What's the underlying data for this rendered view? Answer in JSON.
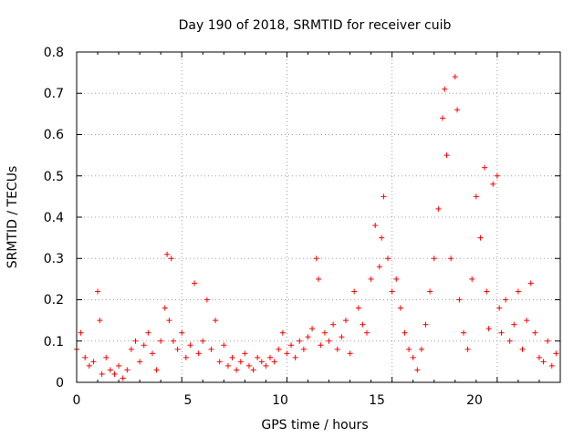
{
  "chart_data": {
    "type": "scatter",
    "title": "Day 190 of 2018, SRMTID for receiver cuib",
    "xlabel": "GPS time / hours",
    "ylabel": "SRMTID / TECUs",
    "xlim": [
      0,
      23
    ],
    "ylim": [
      0,
      0.8
    ],
    "xticks": [
      "0",
      "5",
      "10",
      "15",
      "20"
    ],
    "yticks": [
      "0",
      "0.1",
      "0.2",
      "0.3",
      "0.4",
      "0.5",
      "0.6",
      "0.7",
      "0.8"
    ],
    "grid": true,
    "marker": "+",
    "color": "#ff0000",
    "series": [
      {
        "name": "SRMTID",
        "x": [
          0.0,
          0.2,
          0.4,
          0.6,
          0.8,
          1.0,
          1.1,
          1.2,
          1.4,
          1.6,
          1.8,
          2.0,
          2.2,
          2.4,
          2.6,
          2.8,
          3.0,
          3.2,
          3.4,
          3.6,
          3.8,
          4.0,
          4.2,
          4.3,
          4.4,
          4.5,
          4.6,
          4.8,
          5.0,
          5.2,
          5.4,
          5.6,
          5.8,
          6.0,
          6.2,
          6.4,
          6.6,
          6.8,
          7.0,
          7.2,
          7.4,
          7.6,
          7.8,
          8.0,
          8.2,
          8.4,
          8.6,
          8.8,
          9.0,
          9.2,
          9.4,
          9.6,
          9.8,
          10.0,
          10.2,
          10.4,
          10.6,
          10.8,
          11.0,
          11.2,
          11.4,
          11.5,
          11.6,
          11.8,
          12.0,
          12.2,
          12.4,
          12.6,
          12.8,
          13.0,
          13.2,
          13.4,
          13.6,
          13.8,
          14.0,
          14.2,
          14.4,
          14.5,
          14.6,
          14.8,
          15.0,
          15.2,
          15.4,
          15.6,
          15.8,
          16.0,
          16.2,
          16.4,
          16.6,
          16.8,
          17.0,
          17.2,
          17.4,
          17.5,
          17.6,
          17.8,
          18.0,
          18.1,
          18.2,
          18.4,
          18.6,
          18.8,
          19.0,
          19.2,
          19.4,
          19.5,
          19.6,
          19.8,
          20.0,
          20.1,
          20.2,
          20.4,
          20.6,
          20.8,
          21.0,
          21.2,
          21.4,
          21.6,
          21.8,
          22.0,
          22.2,
          22.4,
          22.6,
          22.8
        ],
        "y": [
          0.08,
          0.12,
          0.06,
          0.04,
          0.05,
          0.22,
          0.15,
          0.02,
          0.06,
          0.03,
          0.02,
          0.04,
          0.01,
          0.03,
          0.08,
          0.1,
          0.05,
          0.09,
          0.12,
          0.07,
          0.03,
          0.1,
          0.18,
          0.31,
          0.15,
          0.3,
          0.1,
          0.08,
          0.12,
          0.06,
          0.09,
          0.24,
          0.07,
          0.1,
          0.2,
          0.08,
          0.15,
          0.05,
          0.09,
          0.04,
          0.06,
          0.03,
          0.05,
          0.07,
          0.04,
          0.03,
          0.06,
          0.05,
          0.04,
          0.06,
          0.05,
          0.08,
          0.12,
          0.07,
          0.09,
          0.06,
          0.1,
          0.08,
          0.11,
          0.13,
          0.3,
          0.25,
          0.09,
          0.12,
          0.1,
          0.14,
          0.08,
          0.11,
          0.15,
          0.07,
          0.22,
          0.18,
          0.14,
          0.12,
          0.25,
          0.38,
          0.28,
          0.35,
          0.45,
          0.3,
          0.22,
          0.25,
          0.18,
          0.12,
          0.08,
          0.06,
          0.03,
          0.08,
          0.14,
          0.22,
          0.3,
          0.42,
          0.64,
          0.71,
          0.55,
          0.3,
          0.74,
          0.66,
          0.2,
          0.12,
          0.08,
          0.25,
          0.45,
          0.35,
          0.52,
          0.22,
          0.13,
          0.48,
          0.5,
          0.18,
          0.12,
          0.2,
          0.1,
          0.14,
          0.22,
          0.08,
          0.15,
          0.24,
          0.12,
          0.06,
          0.05,
          0.1,
          0.04,
          0.07
        ]
      }
    ]
  }
}
